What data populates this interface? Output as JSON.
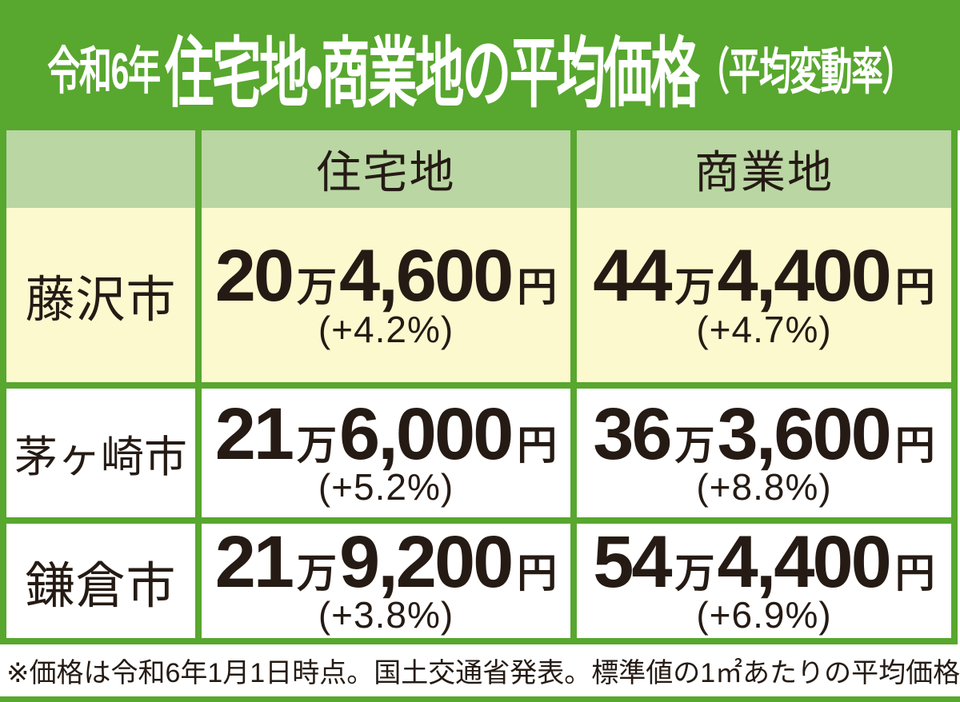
{
  "title": {
    "era": "令和6年",
    "main": "住宅地・商業地の平均価格",
    "note": "（平均変動率）"
  },
  "units": {
    "man": "万",
    "yen": "円"
  },
  "table": {
    "column_headers": [
      "住宅地",
      "商業地"
    ],
    "rows": [
      {
        "city": "藤沢市",
        "residential": {
          "man": "20",
          "yen": "4,600",
          "change": "(+4.2%)"
        },
        "commercial": {
          "man": "44",
          "yen": "4,400",
          "change": "(+4.7%)"
        }
      },
      {
        "city": "茅ヶ崎市",
        "residential": {
          "man": "21",
          "yen": "6,000",
          "change": "(+5.2%)"
        },
        "commercial": {
          "man": "36",
          "yen": "3,600",
          "change": "(+8.8%)"
        }
      },
      {
        "city": "鎌倉市",
        "residential": {
          "man": "21",
          "yen": "9,200",
          "change": "(+3.8%)"
        },
        "commercial": {
          "man": "54",
          "yen": "4,400",
          "change": "(+6.9%)"
        }
      }
    ]
  },
  "footnote": {
    "text": "※価格は令和6年1月1日時点。国土交通省発表。標準値の1㎡あたりの平均価格"
  },
  "colors": {
    "green": "#58a72f",
    "light_green": "#b9d6a3",
    "pale_yellow": "#fcf9cf",
    "text_dark": "#251b14",
    "title_text": "#ffffff"
  },
  "chart_data": {
    "type": "table",
    "title": "令和6年住宅地・商業地の平均価格（平均変動率）",
    "categories": [
      "藤沢市",
      "茅ヶ崎市",
      "鎌倉市"
    ],
    "series": [
      {
        "name": "住宅地 平均価格（円/㎡）",
        "values": [
          204600,
          216000,
          219200
        ]
      },
      {
        "name": "住宅地 平均変動率（%）",
        "values": [
          4.2,
          5.2,
          3.8
        ]
      },
      {
        "name": "商業地 平均価格（円/㎡）",
        "values": [
          444400,
          363600,
          544400
        ]
      },
      {
        "name": "商業地 平均変動率（%）",
        "values": [
          4.7,
          8.8,
          6.9
        ]
      }
    ],
    "note": "※価格は令和6年1月1日時点。国土交通省発表。標準値の1㎡あたりの平均価格"
  }
}
